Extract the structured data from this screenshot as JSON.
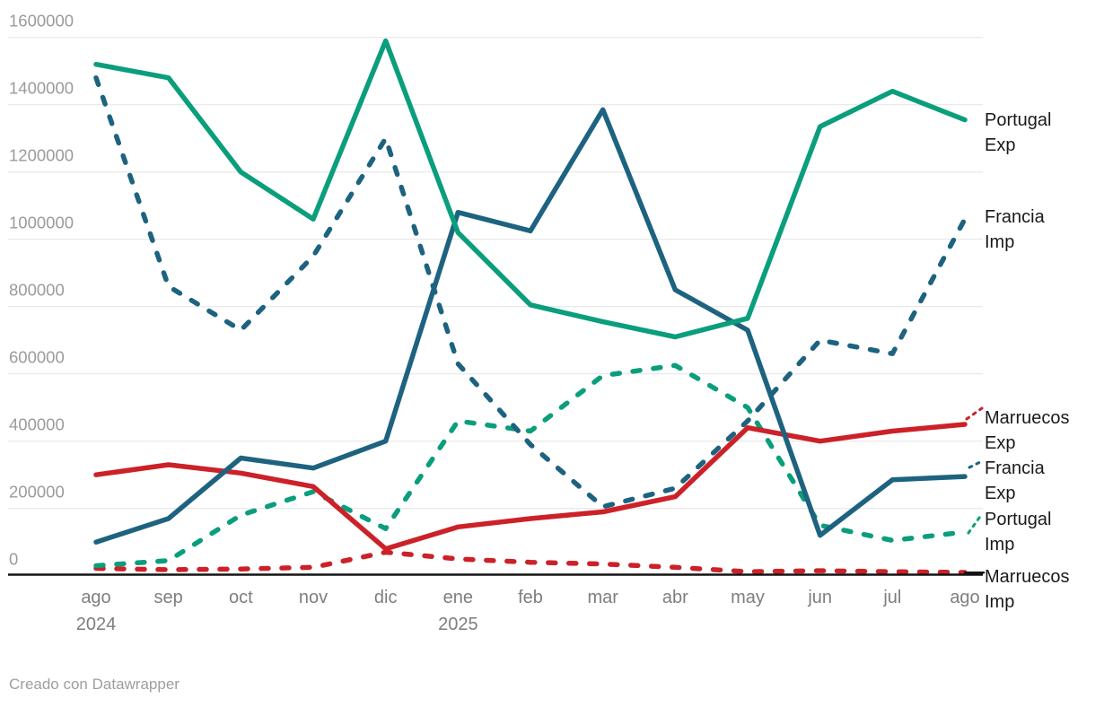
{
  "chart_data": {
    "type": "line",
    "title": "",
    "x_categories": [
      "ago",
      "sep",
      "oct",
      "nov",
      "dic",
      "ene",
      "feb",
      "mar",
      "abr",
      "may",
      "jun",
      "jul",
      "ago"
    ],
    "x_year_labels": [
      {
        "index": 0,
        "label": "2024"
      },
      {
        "index": 5,
        "label": "2025"
      }
    ],
    "y_ticks": [
      0,
      200000,
      400000,
      600000,
      800000,
      1000000,
      1200000,
      1400000,
      1600000
    ],
    "ylim": [
      0,
      1600000
    ],
    "grid": true,
    "legend_position": "right",
    "series": [
      {
        "name": "Marruecos Imp",
        "color": "#cc2128",
        "dash": true,
        "values": [
          22000,
          18000,
          20000,
          25000,
          70000,
          50000,
          40000,
          35000,
          25000,
          12000,
          15000,
          12000,
          10000
        ]
      },
      {
        "name": "Portugal Imp",
        "color": "#0a9e7c",
        "dash": true,
        "values": [
          30000,
          45000,
          180000,
          250000,
          140000,
          460000,
          430000,
          595000,
          625000,
          500000,
          150000,
          105000,
          130000
        ]
      },
      {
        "name": "Marruecos Exp",
        "color": "#cc2128",
        "dash": false,
        "values": [
          300000,
          330000,
          305000,
          265000,
          80000,
          145000,
          170000,
          190000,
          235000,
          440000,
          400000,
          430000,
          450000
        ]
      },
      {
        "name": "Francia Imp",
        "color": "#1d6380",
        "dash": true,
        "values": [
          1480000,
          860000,
          730000,
          950000,
          1300000,
          630000,
          390000,
          205000,
          260000,
          460000,
          700000,
          660000,
          1060000
        ]
      },
      {
        "name": "Francia Exp",
        "color": "#1d6380",
        "dash": false,
        "values": [
          100000,
          170000,
          350000,
          320000,
          400000,
          1080000,
          1025000,
          1385000,
          850000,
          730000,
          120000,
          285000,
          295000
        ]
      },
      {
        "name": "Portugal Exp",
        "color": "#0a9e7c",
        "dash": false,
        "values": [
          1520000,
          1480000,
          1200000,
          1060000,
          1590000,
          1020000,
          805000,
          755000,
          710000,
          765000,
          1335000,
          1440000,
          1355000
        ]
      }
    ]
  },
  "legend": {
    "entries": [
      {
        "label": "Portugal Exp",
        "series": "Portugal Exp"
      },
      {
        "label": "Francia Imp",
        "series": "Francia Imp"
      },
      {
        "label": "Marruecos Exp",
        "series": "Marruecos Exp"
      },
      {
        "label": "Francia Exp",
        "series": "Francia Exp"
      },
      {
        "label": "Portugal Imp",
        "series": "Portugal Imp"
      },
      {
        "label": "Marruecos Imp",
        "series": "Marruecos Imp"
      }
    ]
  },
  "footer": {
    "credit": "Creado con Datawrapper"
  },
  "colors": {
    "green": "#0a9e7c",
    "blue": "#1d6380",
    "red": "#cc2128",
    "grid": "#e4e4e4",
    "axis_line": "#141414",
    "y_tick_label": "#9b9b9b",
    "x_tick_label": "#7e7e7e",
    "legend_text": "#1a1a1a",
    "credit_text": "#9e9e9e"
  }
}
